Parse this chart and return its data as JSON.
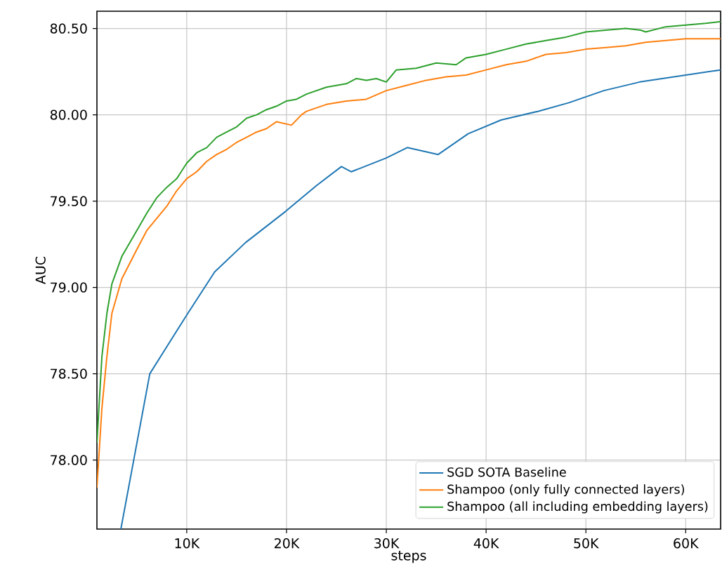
{
  "chart_data": {
    "type": "line",
    "xlabel": "steps",
    "ylabel": "AUC",
    "xlim": [
      1000,
      63500
    ],
    "ylim": [
      77.6,
      80.6
    ],
    "xticks": [
      {
        "value": 10000,
        "label": "10K"
      },
      {
        "value": 20000,
        "label": "20K"
      },
      {
        "value": 30000,
        "label": "30K"
      },
      {
        "value": 40000,
        "label": "40K"
      },
      {
        "value": 50000,
        "label": "50K"
      },
      {
        "value": 60000,
        "label": "60K"
      }
    ],
    "yticks": [
      {
        "value": 78,
        "label": "78.00"
      },
      {
        "value": 78.5,
        "label": "78.50"
      },
      {
        "value": 79,
        "label": "79.00"
      },
      {
        "value": 79.5,
        "label": "79.50"
      },
      {
        "value": 80,
        "label": "80.00"
      },
      {
        "value": 80.5,
        "label": "80.50"
      }
    ],
    "grid": true,
    "legend": "bottom right",
    "marker": "none",
    "line_style": "solid",
    "series": [
      {
        "name": "SGD SOTA Baseline",
        "color": "#1f77b4",
        "x": [
          3400,
          6300,
          10000,
          12800,
          15900,
          19900,
          23000,
          25500,
          26500,
          30000,
          32100,
          35200,
          38200,
          41500,
          45200,
          48300,
          51800,
          55400,
          60000,
          63500
        ],
        "values": [
          77.6,
          78.5,
          78.84,
          79.09,
          79.26,
          79.44,
          79.59,
          79.7,
          79.67,
          79.75,
          79.81,
          79.77,
          79.89,
          79.97,
          80.02,
          80.07,
          80.14,
          80.19,
          80.23,
          80.26
        ]
      },
      {
        "name": "Shampoo (only fully connected layers)",
        "color": "#ff7f0e",
        "x": [
          1000,
          1500,
          2000,
          2500,
          3500,
          5000,
          6000,
          7000,
          8000,
          9000,
          10000,
          11000,
          12000,
          13000,
          14000,
          15000,
          16000,
          17000,
          18000,
          19000,
          20500,
          21500,
          22000,
          24000,
          26000,
          28000,
          30000,
          32000,
          34000,
          36000,
          38000,
          40000,
          42000,
          44000,
          46000,
          48000,
          50000,
          52000,
          54000,
          56000,
          58000,
          60000,
          62000,
          63500
        ],
        "values": [
          77.84,
          78.3,
          78.6,
          78.85,
          79.05,
          79.22,
          79.33,
          79.4,
          79.47,
          79.56,
          79.63,
          79.67,
          79.73,
          79.77,
          79.8,
          79.84,
          79.87,
          79.9,
          79.92,
          79.96,
          79.94,
          80.0,
          80.02,
          80.06,
          80.08,
          80.09,
          80.14,
          80.17,
          80.2,
          80.22,
          80.23,
          80.26,
          80.29,
          80.31,
          80.35,
          80.36,
          80.38,
          80.39,
          80.4,
          80.42,
          80.43,
          80.44,
          80.44,
          80.44
        ]
      },
      {
        "name": "Shampoo (all including embedding layers)",
        "color": "#2ca02c",
        "x": [
          1000,
          1500,
          2000,
          2500,
          3500,
          5000,
          6000,
          7000,
          8000,
          9000,
          10000,
          11000,
          12000,
          13000,
          14000,
          15000,
          16000,
          17000,
          18000,
          19000,
          20000,
          21000,
          22000,
          24000,
          26000,
          27000,
          28000,
          29000,
          30000,
          31000,
          33000,
          35000,
          37000,
          38000,
          40000,
          42000,
          44000,
          46000,
          48000,
          50000,
          52000,
          54000,
          55500,
          56000,
          58000,
          60000,
          62000,
          63500
        ],
        "values": [
          78.1,
          78.6,
          78.85,
          79.02,
          79.18,
          79.33,
          79.43,
          79.52,
          79.58,
          79.63,
          79.72,
          79.78,
          79.81,
          79.87,
          79.9,
          79.93,
          79.98,
          80.0,
          80.03,
          80.05,
          80.08,
          80.09,
          80.12,
          80.16,
          80.18,
          80.21,
          80.2,
          80.21,
          80.19,
          80.26,
          80.27,
          80.3,
          80.29,
          80.33,
          80.35,
          80.38,
          80.41,
          80.43,
          80.45,
          80.48,
          80.49,
          80.5,
          80.49,
          80.48,
          80.51,
          80.52,
          80.53,
          80.54
        ]
      }
    ]
  }
}
